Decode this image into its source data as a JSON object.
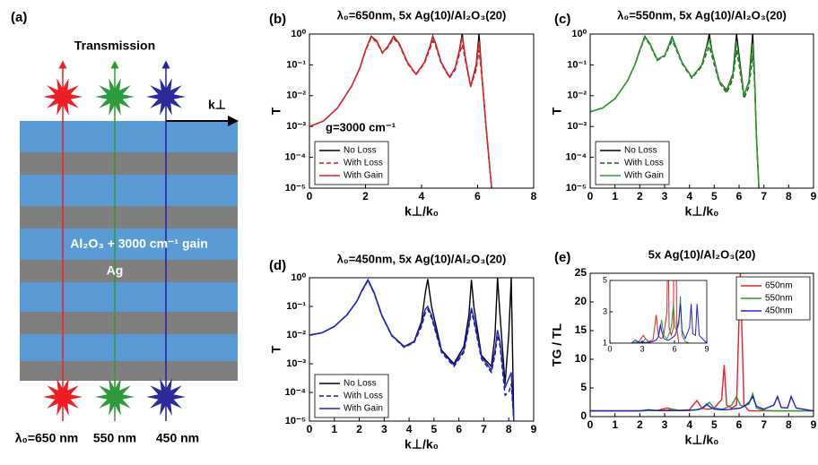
{
  "diagram": {
    "panel_label": "(a)",
    "heading": "Transmission",
    "axis_label": "k⊥",
    "layer_gain": "Al₂O₃ + 3000 cm⁻¹ gain",
    "layer_metal": "Ag",
    "wavelengths": [
      "λ₀=650 nm",
      "550 nm",
      "450 nm"
    ]
  },
  "chart_data": [
    {
      "type": "line",
      "panel_label": "(b)",
      "title": "λ₀=650nm, 5x Ag(10)/Al₂O₃(20)",
      "xlabel": "k⊥/k₀",
      "ylabel": "T",
      "log_y": true,
      "legend": "lower left",
      "annotation": "g=3000 cm⁻¹",
      "xlim": [
        0,
        8
      ],
      "xticks": [
        0,
        2,
        4,
        6,
        8
      ],
      "ylim": [
        1e-05,
        1
      ],
      "yticks": [
        {
          "value": 1e-05,
          "label": "10⁻⁵"
        },
        {
          "value": 0.0001,
          "label": "10⁻⁴"
        },
        {
          "value": 0.001,
          "label": "10⁻³"
        },
        {
          "value": 0.01,
          "label": "10⁻²"
        },
        {
          "value": 0.1,
          "label": "10⁻¹"
        },
        {
          "value": 1,
          "label": "10⁰"
        }
      ],
      "x": [
        0,
        0.5,
        1,
        1.5,
        1.8,
        2.0,
        2.2,
        2.4,
        2.6,
        2.8,
        3.0,
        3.2,
        3.5,
        3.8,
        4.1,
        4.3,
        4.4,
        4.5,
        4.7,
        5.0,
        5.2,
        5.35,
        5.45,
        5.55,
        5.75,
        5.95,
        6.05,
        6.15,
        6.3,
        6.5
      ],
      "series": [
        {
          "name": "No Loss",
          "color": "#000000",
          "dashed": false,
          "values": [
            0.001,
            0.0015,
            0.004,
            0.02,
            0.08,
            0.3,
            0.85,
            0.6,
            0.25,
            0.4,
            0.85,
            0.5,
            0.12,
            0.05,
            0.12,
            0.4,
            0.85,
            0.5,
            0.12,
            0.04,
            0.08,
            0.3,
            1,
            0.2,
            0.02,
            0.1,
            1,
            0.05,
            0.001,
            1e-05
          ]
        },
        {
          "name": "With Loss",
          "color": "#b22222",
          "dashed": true,
          "values": [
            0.001,
            0.0015,
            0.004,
            0.02,
            0.08,
            0.28,
            0.75,
            0.55,
            0.24,
            0.37,
            0.72,
            0.45,
            0.11,
            0.048,
            0.11,
            0.33,
            0.6,
            0.42,
            0.11,
            0.038,
            0.07,
            0.22,
            0.45,
            0.16,
            0.019,
            0.07,
            0.3,
            0.04,
            0.0009,
            1e-05
          ]
        },
        {
          "name": "With Gain",
          "color": "#e8202a",
          "dashed": false,
          "values": [
            0.001,
            0.0015,
            0.004,
            0.02,
            0.08,
            0.3,
            0.83,
            0.58,
            0.25,
            0.39,
            0.82,
            0.49,
            0.12,
            0.05,
            0.12,
            0.38,
            0.8,
            0.48,
            0.12,
            0.04,
            0.08,
            0.28,
            0.8,
            0.2,
            0.02,
            0.09,
            0.6,
            0.05,
            0.001,
            1e-05
          ]
        }
      ]
    },
    {
      "type": "line",
      "panel_label": "(c)",
      "title": "λ₀=550nm, 5x Ag(10)/Al₂O₃(20)",
      "xlabel": "k⊥/k₀",
      "ylabel": "T",
      "log_y": true,
      "legend": "lower left",
      "xlim": [
        0,
        9
      ],
      "xticks": [
        0,
        1,
        2,
        3,
        4,
        5,
        6,
        7,
        8,
        9
      ],
      "ylim": [
        1e-05,
        1
      ],
      "yticks": [
        {
          "value": 1e-05,
          "label": "10⁻⁵"
        },
        {
          "value": 0.0001,
          "label": "10⁻⁴"
        },
        {
          "value": 0.001,
          "label": "10⁻³"
        },
        {
          "value": 0.01,
          "label": "10⁻²"
        },
        {
          "value": 0.1,
          "label": "10⁻¹"
        },
        {
          "value": 1,
          "label": "10⁰"
        }
      ],
      "x": [
        0,
        0.5,
        1,
        1.5,
        1.8,
        2.0,
        2.2,
        2.4,
        2.7,
        3.0,
        3.2,
        3.3,
        3.4,
        3.7,
        4.1,
        4.5,
        4.7,
        4.8,
        4.9,
        5.2,
        5.5,
        5.75,
        5.9,
        6.0,
        6.2,
        6.4,
        6.55,
        6.62,
        6.7,
        6.8
      ],
      "series": [
        {
          "name": "No Loss",
          "color": "#000000",
          "dashed": false,
          "values": [
            0.003,
            0.004,
            0.008,
            0.03,
            0.1,
            0.3,
            0.85,
            0.5,
            0.15,
            0.2,
            0.5,
            0.8,
            0.5,
            0.12,
            0.04,
            0.1,
            0.4,
            1,
            0.3,
            0.03,
            0.015,
            0.05,
            1,
            0.2,
            0.01,
            0.03,
            1,
            0.05,
            0.0005,
            1e-05
          ]
        },
        {
          "name": "With Loss",
          "color": "#1a5e1a",
          "dashed": true,
          "values": [
            0.003,
            0.004,
            0.008,
            0.03,
            0.1,
            0.28,
            0.75,
            0.46,
            0.14,
            0.19,
            0.42,
            0.6,
            0.42,
            0.11,
            0.037,
            0.09,
            0.25,
            0.4,
            0.2,
            0.027,
            0.012,
            0.035,
            0.3,
            0.1,
            0.008,
            0.02,
            0.2,
            0.03,
            0.0004,
            1e-05
          ]
        },
        {
          "name": "With Gain",
          "color": "#2e9a2e",
          "dashed": false,
          "values": [
            0.003,
            0.004,
            0.008,
            0.03,
            0.1,
            0.3,
            0.82,
            0.5,
            0.15,
            0.2,
            0.48,
            0.75,
            0.48,
            0.12,
            0.04,
            0.1,
            0.35,
            0.7,
            0.28,
            0.03,
            0.014,
            0.045,
            0.6,
            0.15,
            0.01,
            0.028,
            0.5,
            0.04,
            0.0005,
            1e-05
          ]
        }
      ]
    },
    {
      "type": "line",
      "panel_label": "(d)",
      "title": "λ₀=450nm, 5x Ag(10)/Al₂O₃(20)",
      "xlabel": "k⊥/k₀",
      "ylabel": "T",
      "log_y": true,
      "legend": "lower left",
      "xlim": [
        0,
        9
      ],
      "xticks": [
        0,
        1,
        2,
        3,
        4,
        5,
        6,
        7,
        8,
        9
      ],
      "ylim": [
        1e-05,
        1
      ],
      "yticks": [
        {
          "value": 1e-05,
          "label": "10⁻⁵"
        },
        {
          "value": 0.0001,
          "label": "10⁻⁴"
        },
        {
          "value": 0.001,
          "label": "10⁻³"
        },
        {
          "value": 0.01,
          "label": "10⁻²"
        },
        {
          "value": 0.1,
          "label": "10⁻¹"
        },
        {
          "value": 1,
          "label": "10⁰"
        }
      ],
      "x": [
        0,
        0.5,
        1,
        1.5,
        1.9,
        2.1,
        2.35,
        2.6,
        2.9,
        3.3,
        3.8,
        4.2,
        4.5,
        4.65,
        4.75,
        4.9,
        5.3,
        5.8,
        6.2,
        6.4,
        6.5,
        6.6,
        6.9,
        7.3,
        7.45,
        7.55,
        7.65,
        7.85,
        8.0,
        8.1,
        8.2
      ],
      "series": [
        {
          "name": "No Loss",
          "color": "#000000",
          "dashed": false,
          "values": [
            0.01,
            0.012,
            0.02,
            0.05,
            0.15,
            0.35,
            0.85,
            0.3,
            0.05,
            0.01,
            0.004,
            0.006,
            0.03,
            0.3,
            0.9,
            0.1,
            0.003,
            0.001,
            0.004,
            0.05,
            0.85,
            0.1,
            0.002,
            0.0008,
            0.01,
            1,
            0.05,
            0.0002,
            0.01,
            1,
            1e-05
          ]
        },
        {
          "name": "With Loss",
          "color": "#1a1a8c",
          "dashed": true,
          "values": [
            0.01,
            0.012,
            0.02,
            0.05,
            0.15,
            0.33,
            0.8,
            0.28,
            0.048,
            0.0095,
            0.0037,
            0.0055,
            0.02,
            0.06,
            0.08,
            0.04,
            0.0025,
            0.0008,
            0.0025,
            0.02,
            0.07,
            0.03,
            0.0015,
            0.0005,
            0.002,
            0.01,
            0.004,
            8e-05,
            0.0001,
            0.0002,
            1e-05
          ]
        },
        {
          "name": "With Gain",
          "color": "#2020d0",
          "dashed": false,
          "values": [
            0.01,
            0.012,
            0.02,
            0.05,
            0.15,
            0.34,
            0.83,
            0.29,
            0.049,
            0.0098,
            0.0039,
            0.0058,
            0.025,
            0.08,
            0.1,
            0.05,
            0.0028,
            0.0009,
            0.003,
            0.025,
            0.09,
            0.04,
            0.0018,
            0.0006,
            0.003,
            0.015,
            0.006,
            0.00015,
            0.0003,
            0.0005,
            1e-05
          ]
        }
      ]
    },
    {
      "type": "line",
      "panel_label": "(e)",
      "title": "5x Ag(10)/Al₂O₃(20)",
      "xlabel": "k⊥/k₀",
      "ylabel": "TG / TL",
      "log_y": false,
      "legend": "upper right",
      "xlim": [
        0,
        9
      ],
      "xticks": [
        0,
        1,
        2,
        3,
        4,
        5,
        6,
        7,
        8,
        9
      ],
      "ylim": [
        0,
        25
      ],
      "yticks": [
        0,
        5,
        10,
        15,
        20,
        25
      ],
      "inset": {
        "xlim": [
          0,
          9
        ],
        "ylim": [
          1,
          5
        ],
        "xticks": [
          0,
          3,
          6,
          9
        ],
        "yticks": [
          1,
          3,
          5
        ]
      },
      "x": [
        0,
        1,
        2,
        2.35,
        2.7,
        3.1,
        3.3,
        3.6,
        4.0,
        4.3,
        4.5,
        4.7,
        4.8,
        5.0,
        5.3,
        5.4,
        5.5,
        5.7,
        5.9,
        6.05,
        6.2,
        6.4,
        6.55,
        6.7,
        7.0,
        7.4,
        7.55,
        7.7,
        7.95,
        8.1,
        8.3,
        9
      ],
      "series": [
        {
          "name": "650nm",
          "color": "#e8202a",
          "dashed": false,
          "values": [
            1,
            1,
            1,
            1.05,
            1.1,
            1.5,
            1.3,
            1.1,
            1.2,
            2.8,
            1.5,
            1.3,
            1.3,
            1.5,
            3,
            9,
            2,
            1.5,
            2,
            25,
            2,
            1,
            1,
            1,
            1,
            1,
            1,
            1,
            1,
            1,
            1,
            1
          ]
        },
        {
          "name": "550nm",
          "color": "#2e9a2e",
          "dashed": false,
          "values": [
            1,
            1,
            1,
            1.05,
            1.05,
            1.1,
            1.3,
            1.05,
            1.1,
            1.2,
            1.4,
            2,
            2.5,
            1.5,
            1.3,
            1.4,
            1.6,
            2,
            3.5,
            2,
            1.8,
            2.2,
            4,
            1.5,
            1.1,
            1,
            1,
            1,
            1,
            1,
            1,
            1
          ]
        },
        {
          "name": "450nm",
          "color": "#2020d0",
          "dashed": false,
          "values": [
            1,
            1,
            1,
            1.2,
            1.05,
            1.05,
            1.05,
            1.05,
            1.1,
            1.2,
            1.4,
            2.2,
            1.8,
            1.3,
            1.2,
            1.2,
            1.2,
            1.3,
            1.4,
            1.5,
            1.8,
            2.5,
            3.5,
            1.8,
            1.3,
            2,
            3.5,
            1.6,
            1.5,
            3.5,
            1.5,
            1
          ]
        }
      ]
    }
  ]
}
